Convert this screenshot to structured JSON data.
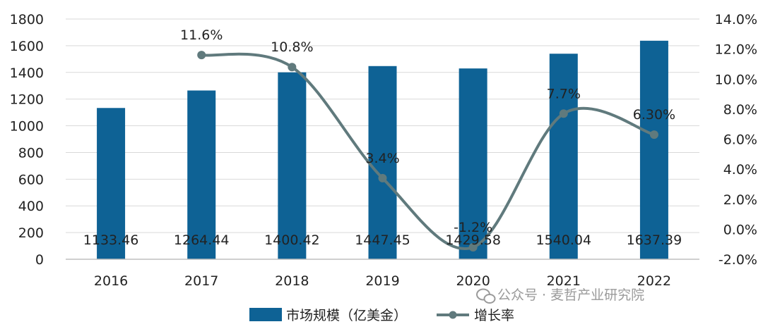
{
  "chart_data": {
    "type": "bar",
    "categories": [
      "2016",
      "2017",
      "2018",
      "2019",
      "2020",
      "2021",
      "2022"
    ],
    "series": [
      {
        "name": "市场规模（亿美金）",
        "type": "bar",
        "axis": "left",
        "values": [
          1133.46,
          1264.44,
          1400.42,
          1447.45,
          1429.58,
          1540.04,
          1637.39
        ],
        "labels": [
          "1133.46",
          "1264.44",
          "1400.42",
          "1447.45",
          "1429.58",
          "1540.04",
          "1637.39"
        ]
      },
      {
        "name": "增长率",
        "type": "line",
        "axis": "right",
        "values": [
          null,
          11.6,
          10.8,
          3.4,
          -1.2,
          7.7,
          6.3
        ],
        "labels": [
          "",
          "11.6%",
          "10.8%",
          "3.4%",
          "-1.2%",
          "7.7%",
          "6.30%"
        ]
      }
    ],
    "ylim": [
      0,
      1800
    ],
    "yticks": [
      0,
      200,
      400,
      600,
      800,
      1000,
      1200,
      1400,
      1600,
      1800
    ],
    "ylim_right": [
      -2.0,
      14.0
    ],
    "yticks_right": [
      "-2.0%",
      "0.0%",
      "2.0%",
      "4.0%",
      "6.0%",
      "8.0%",
      "10.0%",
      "12.0%",
      "14.0%"
    ],
    "grid": true,
    "legend_position": "bottom-center",
    "colors": {
      "bar": "#0e6295",
      "line": "#607a7d",
      "grid": "#d9d9d9",
      "axis": "#bfbfbf"
    }
  },
  "watermark": {
    "text": "公众号 · 麦哲产业研究院",
    "icon": "wechat-icon"
  }
}
